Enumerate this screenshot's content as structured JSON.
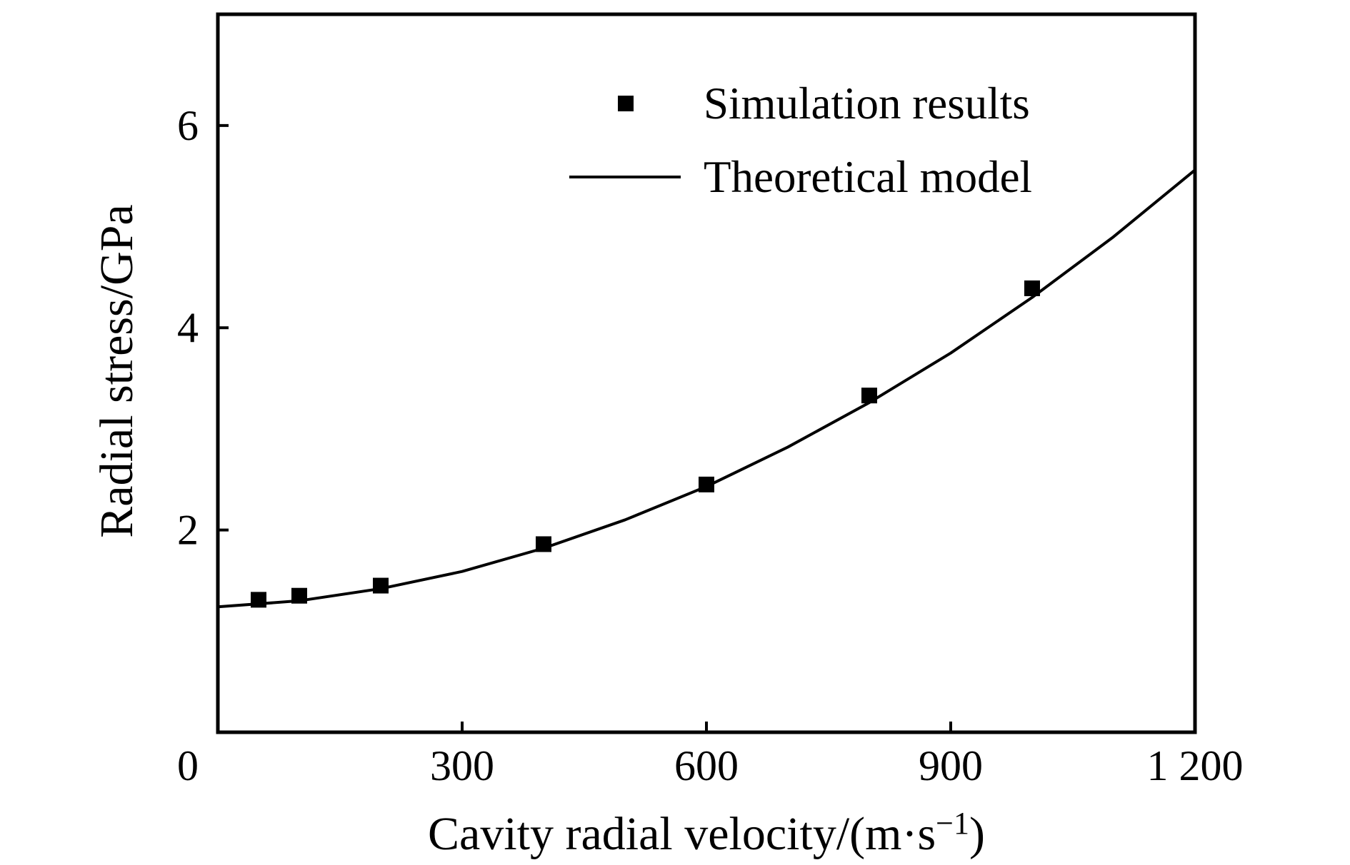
{
  "figure": {
    "background": "#ffffff",
    "ink_color": "#000000"
  },
  "chart_data": {
    "type": "scatter",
    "title": "",
    "xlabel": "Cavity radial velocity/(m·s⁻¹)",
    "xlabel_parts": {
      "base": "Cavity radial velocity/(m·s",
      "sup": "−1",
      "close": ")"
    },
    "ylabel": "Radial stress/GPa",
    "xlim": [
      0,
      1200
    ],
    "ylim": [
      0,
      7.1
    ],
    "x_ticks": [
      0,
      300,
      600,
      900,
      1200
    ],
    "x_tick_labels": [
      "0",
      "300",
      "600",
      "900",
      "1 200"
    ],
    "y_ticks": [
      2,
      4,
      6
    ],
    "y_tick_labels": [
      "2",
      "4",
      "6"
    ],
    "grid": false,
    "legend_position": "upper center inside",
    "legend": [
      "Simulation results",
      "Theoretical model"
    ],
    "series": [
      {
        "name": "Simulation results",
        "kind": "scatter",
        "marker": "square",
        "color": "#000000",
        "points": [
          [
            50,
            1.31
          ],
          [
            100,
            1.35
          ],
          [
            200,
            1.45
          ],
          [
            400,
            1.86
          ],
          [
            600,
            2.45
          ],
          [
            800,
            3.33
          ],
          [
            1000,
            4.39
          ]
        ]
      },
      {
        "name": "Theoretical model",
        "kind": "line",
        "color": "#000000",
        "points": [
          [
            0,
            1.24
          ],
          [
            100,
            1.3
          ],
          [
            200,
            1.42
          ],
          [
            300,
            1.59
          ],
          [
            400,
            1.82
          ],
          [
            500,
            2.1
          ],
          [
            600,
            2.43
          ],
          [
            700,
            2.82
          ],
          [
            800,
            3.26
          ],
          [
            900,
            3.75
          ],
          [
            1000,
            4.3
          ],
          [
            1100,
            4.9
          ],
          [
            1200,
            5.56
          ]
        ]
      }
    ]
  }
}
